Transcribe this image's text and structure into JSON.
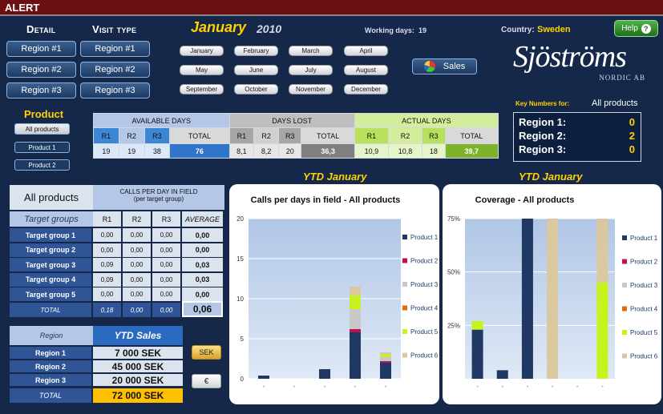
{
  "alert": "ALERT",
  "detail_header": "Detail",
  "visit_header": "Visit type",
  "detail_buttons": [
    "Region #1",
    "Region #2",
    "Region #3"
  ],
  "visit_buttons": [
    "Region #1",
    "Region #2",
    "Region #3"
  ],
  "month": "January",
  "year": "2010",
  "working_days_label": "Working days:",
  "working_days": "19",
  "country_label": "Country:",
  "country": "Sweden",
  "help": "Help",
  "months": [
    "January",
    "February",
    "March",
    "April",
    "May",
    "June",
    "July",
    "August",
    "September",
    "October",
    "November",
    "December"
  ],
  "sales_button": "Sales",
  "logo_main": "Sjöströms",
  "logo_sub": "NORDIC AB",
  "product_header": "Product",
  "product_buttons": [
    "All products",
    "Product 1",
    "Product 2"
  ],
  "days_table": {
    "groups": [
      "AVAILABLE DAYS",
      "DAYS LOST",
      "ACTUAL DAYS"
    ],
    "cols": [
      "R1",
      "R2",
      "R3",
      "TOTAL",
      "R1",
      "R2",
      "R3",
      "TOTAL",
      "R1",
      "R2",
      "R3",
      "TOTAL"
    ],
    "values": [
      "19",
      "19",
      "38",
      "76",
      "8,1",
      "8,2",
      "20",
      "36,3",
      "10,9",
      "10,8",
      "18",
      "39,7"
    ]
  },
  "key_numbers": {
    "label": "Key Numbers for:",
    "product": "All products",
    "rows": [
      {
        "label": "Region 1:",
        "value": "0"
      },
      {
        "label": "Region 2:",
        "value": "2"
      },
      {
        "label": "Region 3:",
        "value": "0"
      }
    ]
  },
  "calls_table": {
    "product": "All products",
    "title": "CALLS PER DAY IN FIELD",
    "subtitle": "(per target group)",
    "groups_label": "Target groups",
    "cols": [
      "R1",
      "R2",
      "R3",
      "AVERAGE"
    ],
    "rows": [
      {
        "name": "Target group 1",
        "v": [
          "0,00",
          "0,00",
          "0,00",
          "0,00"
        ]
      },
      {
        "name": "Target group 2",
        "v": [
          "0,00",
          "0,00",
          "0,00",
          "0,00"
        ]
      },
      {
        "name": "Target group 3",
        "v": [
          "0,09",
          "0,00",
          "0,00",
          "0,03"
        ]
      },
      {
        "name": "Target group 4",
        "v": [
          "0,09",
          "0,00",
          "0,00",
          "0,03"
        ]
      },
      {
        "name": "Target group 5",
        "v": [
          "0,00",
          "0,00",
          "0,00",
          "0,00"
        ]
      }
    ],
    "total_label": "TOTAL",
    "total": [
      "0,18",
      "0,00",
      "0,00",
      "0,06"
    ]
  },
  "ytd_sales": {
    "region_label": "Region",
    "title": "YTD Sales",
    "rows": [
      {
        "name": "Region 1",
        "value": "7 000 SEK"
      },
      {
        "name": "Region 2",
        "value": "45 000 SEK"
      },
      {
        "name": "Region 3",
        "value": "20 000 SEK"
      }
    ],
    "total_label": "TOTAL",
    "total": "72 000 SEK"
  },
  "currency_buttons": [
    "SEK",
    "€"
  ],
  "ytd_label1": "YTD January",
  "ytd_label2": "YTD January",
  "legend": [
    "Product 1",
    "Product 2",
    "Product 3",
    "Product 4",
    "Product 5",
    "Product 6"
  ],
  "colors": {
    "p1": "#1f3864",
    "p2": "#c0104f",
    "p3": "#c8c8c8",
    "p4": "#e36c09",
    "p5": "#c5f31d",
    "p6": "#d9c8a0",
    "accent": "#ffd200"
  },
  "chart_data": [
    {
      "type": "bar",
      "stacked": true,
      "title": "Calls per days in field  -  All products",
      "ylim": [
        0,
        20
      ],
      "yticks": [
        "0",
        "5",
        "10",
        "15",
        "20"
      ],
      "categories": [
        "-",
        "-",
        "-",
        "-",
        "-"
      ],
      "series": [
        {
          "name": "Product 1",
          "values": [
            0.4,
            0,
            1.2,
            5.8,
            2
          ]
        },
        {
          "name": "Product 2",
          "values": [
            0,
            0,
            0,
            0.4,
            0.2
          ]
        },
        {
          "name": "Product 3",
          "values": [
            0,
            0,
            0,
            2.5,
            0.5
          ]
        },
        {
          "name": "Product 4",
          "values": [
            0,
            0,
            0,
            0,
            0
          ]
        },
        {
          "name": "Product 5",
          "values": [
            0,
            0,
            0,
            1.7,
            0.3
          ]
        },
        {
          "name": "Product 6",
          "values": [
            0,
            0,
            0,
            1.1,
            0.3
          ]
        }
      ]
    },
    {
      "type": "bar",
      "stacked": true,
      "title": "Coverage  -  All products",
      "ylim": [
        0,
        75
      ],
      "yticks": [
        "25%",
        "50%",
        "75%"
      ],
      "categories": [
        "-",
        "-",
        "-",
        "-",
        "-",
        "-"
      ],
      "series": [
        {
          "name": "Product 1",
          "values": [
            23,
            4,
            75,
            0,
            0,
            0
          ]
        },
        {
          "name": "Product 2",
          "values": [
            0,
            0,
            0,
            0,
            0,
            0
          ]
        },
        {
          "name": "Product 3",
          "values": [
            0,
            0,
            0,
            0,
            0,
            0
          ]
        },
        {
          "name": "Product 4",
          "values": [
            0,
            0,
            0,
            0,
            0,
            0
          ]
        },
        {
          "name": "Product 5",
          "values": [
            4,
            0,
            0,
            0,
            0,
            45
          ]
        },
        {
          "name": "Product 6",
          "values": [
            0,
            0,
            0,
            75,
            0,
            30
          ]
        }
      ]
    }
  ]
}
